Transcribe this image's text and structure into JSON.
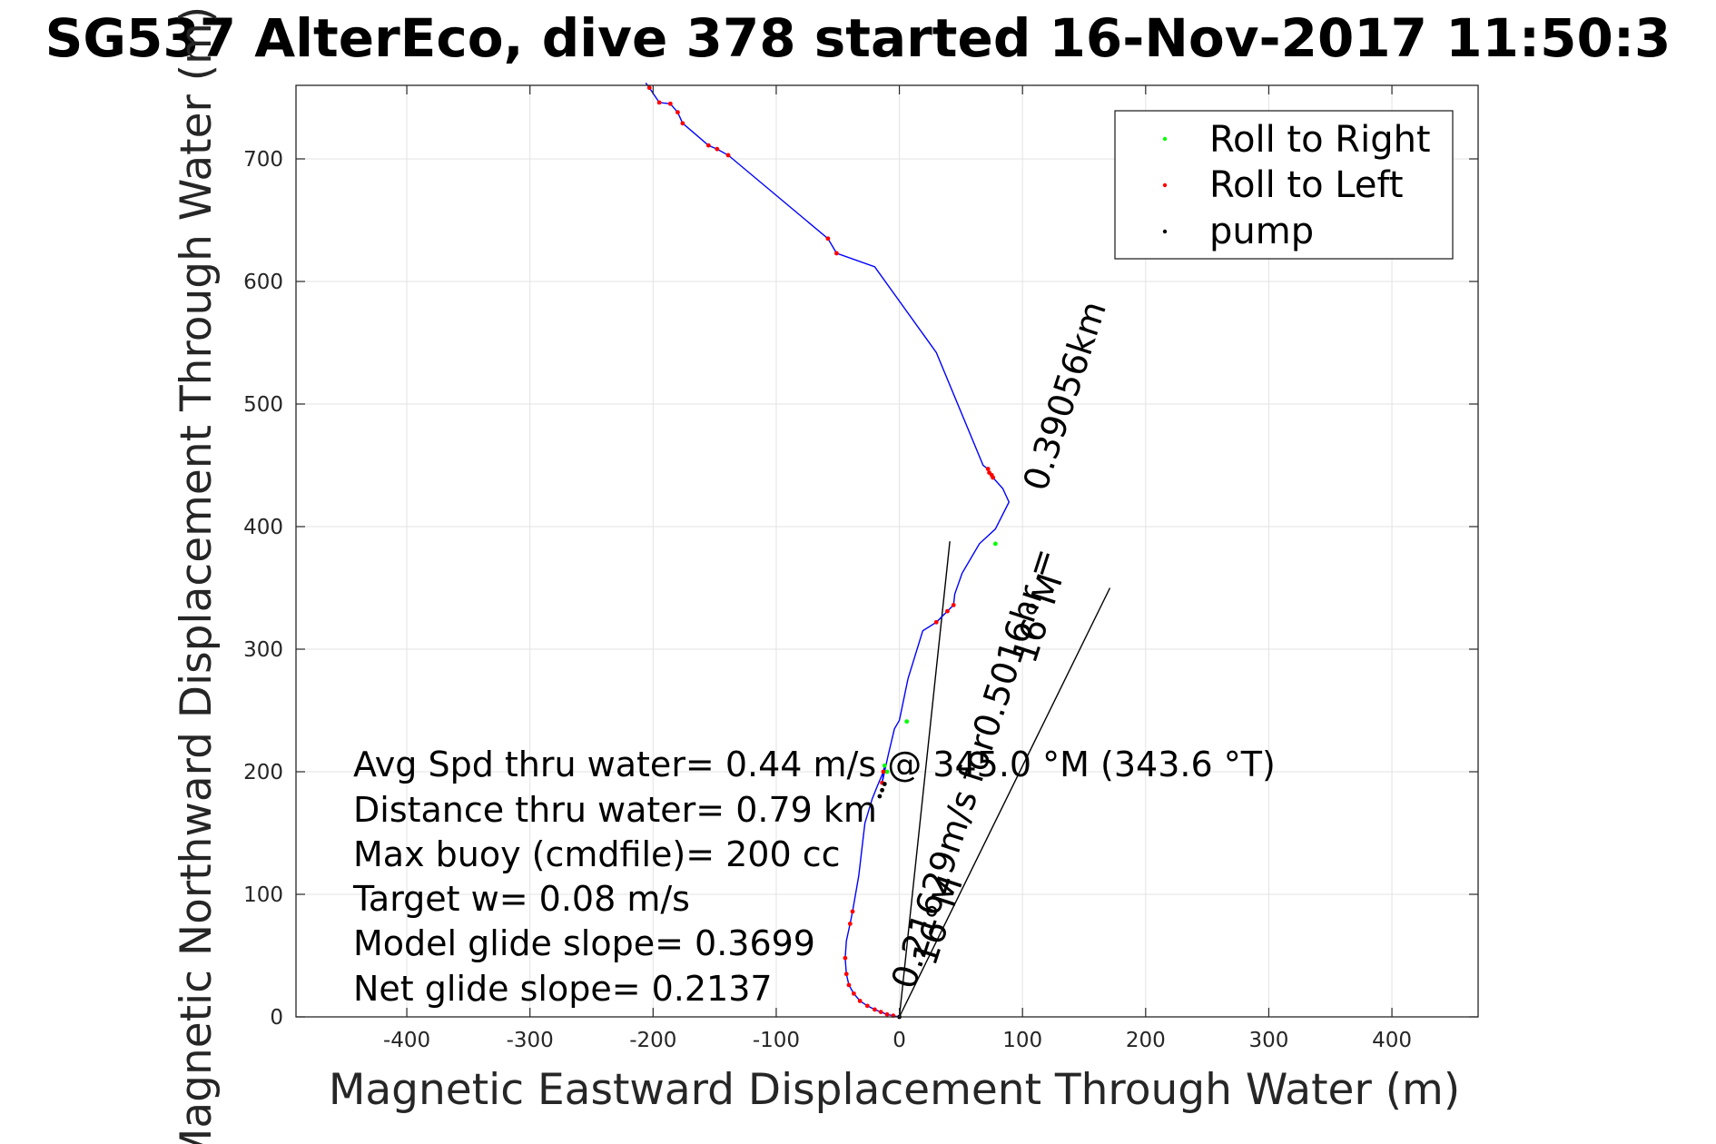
{
  "chart_data": {
    "type": "line",
    "title": "SG537 AlterEco, dive 378 started 16-Nov-2017 11:50:3",
    "xlabel": "Magnetic Eastward Displacement Through Water (m)",
    "ylabel": "Magnetic Northward Displacement Through Water (m)",
    "xlim": [
      -490,
      470
    ],
    "ylim": [
      0,
      760
    ],
    "xticks": [
      -400,
      -300,
      -200,
      -100,
      0,
      100,
      200,
      300,
      400
    ],
    "yticks": [
      0,
      100,
      200,
      300,
      400,
      500,
      600,
      700
    ],
    "xtick_labels": [
      "-400",
      "-300",
      "-200",
      "-100",
      "0",
      "100",
      "200",
      "300",
      "400"
    ],
    "ytick_labels": [
      "0",
      "100",
      "200",
      "300",
      "400",
      "500",
      "600",
      "700"
    ],
    "grid": true,
    "legend_position": "top-right",
    "series": [
      {
        "name": "track",
        "color": "#0000ff",
        "x": [
          0,
          -5,
          -10,
          -15,
          -20,
          -26,
          -32,
          -37,
          -41,
          -43,
          -44,
          -43,
          -40,
          -38,
          -33,
          -28,
          -22,
          -18,
          -13,
          -12,
          -14,
          -9,
          -4,
          0,
          7,
          19,
          30,
          39,
          44,
          45,
          51,
          65,
          78,
          89,
          84,
          76,
          75,
          73,
          72,
          68,
          30,
          -20,
          -51,
          -58,
          -139,
          -148,
          -155,
          -176,
          -180,
          -186,
          -195,
          -203,
          -206
        ],
        "y": [
          0,
          1,
          2,
          4,
          6,
          9,
          13,
          19,
          26,
          35,
          48,
          62,
          76,
          86,
          115,
          158,
          178,
          188,
          200,
          205,
          191,
          214,
          235,
          242,
          276,
          315,
          322,
          331,
          336,
          345,
          362,
          386,
          398,
          420,
          431,
          440,
          442,
          444,
          447,
          450,
          542,
          612,
          623,
          635,
          703,
          708,
          711,
          729,
          738,
          745,
          746,
          758,
          762
        ]
      },
      {
        "name": "Roll to Right",
        "color": "#00ff00",
        "x": [
          6,
          78,
          -12,
          -10
        ],
        "y": [
          241,
          386,
          205,
          200
        ]
      },
      {
        "name": "Roll to Left",
        "color": "#ff0000",
        "x": [
          -5,
          -10,
          -15,
          -20,
          -26,
          -32,
          -37,
          -41,
          -43,
          -44,
          -40,
          -38,
          -13,
          -14,
          30,
          39,
          44,
          76,
          75,
          73,
          72,
          -51,
          -58,
          -139,
          -148,
          -155,
          -176,
          -180,
          -186,
          -195,
          -203
        ],
        "y": [
          1,
          2,
          4,
          6,
          9,
          13,
          19,
          26,
          35,
          48,
          76,
          86,
          200,
          191,
          322,
          331,
          336,
          440,
          442,
          444,
          447,
          623,
          635,
          703,
          708,
          711,
          729,
          738,
          745,
          746,
          758
        ]
      },
      {
        "name": "pump",
        "color": "#000000",
        "x": [
          0,
          -16,
          -14,
          -12
        ],
        "y": [
          0,
          180,
          185,
          190
        ]
      }
    ],
    "reference_lines": [
      {
        "x": [
          0,
          41
        ],
        "y": [
          0,
          388
        ]
      },
      {
        "x": [
          0,
          171
        ],
        "y": [
          0,
          350
        ]
      }
    ],
    "annotations": [
      {
        "text": "0.39056km",
        "rotation": -72
      },
      {
        "text": "16°M",
        "rotation": -72
      },
      {
        "text": "0.21629m/s for0.5016hr =",
        "rotation": -72
      },
      {
        "text": "16°M",
        "rotation": -72
      }
    ],
    "legend": [
      {
        "label": "Roll to Right",
        "color": "#00ff00"
      },
      {
        "label": "Roll to Left",
        "color": "#ff0000"
      },
      {
        "label": "pump",
        "color": "#000000"
      }
    ],
    "notes": [
      "Avg Spd thru water=  0.44 m/s @ 345.0 °M (343.6 °T)",
      "Distance thru water=  0.79 km",
      "Max buoy (cmdfile)= 200 cc",
      "Target w= 0.08 m/s",
      "Model glide slope= 0.3699",
      "Net glide slope= 0.2137"
    ]
  }
}
